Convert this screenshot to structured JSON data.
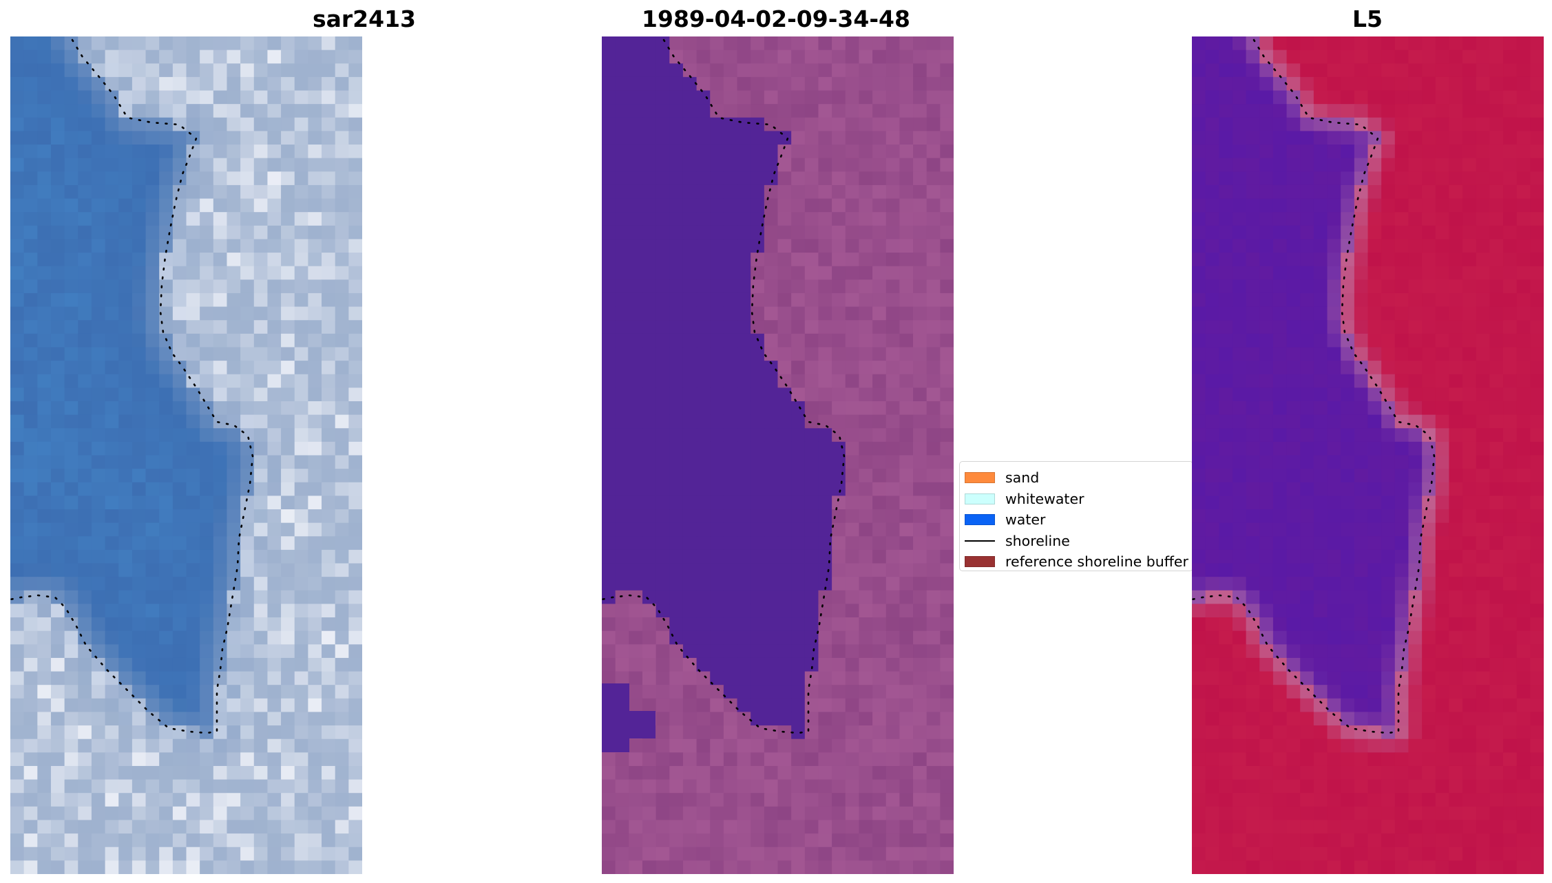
{
  "panels": [
    {
      "id": "rgb",
      "title": "sar2413"
    },
    {
      "id": "classified",
      "title": "1989-04-02-09-34-48"
    },
    {
      "id": "mndwi",
      "title": "L5"
    }
  ],
  "legend": {
    "items": [
      {
        "label": "sand",
        "color": "#fe8a3c",
        "kind": "patch"
      },
      {
        "label": "whitewater",
        "color": "#ccfffd",
        "kind": "patch"
      },
      {
        "label": "water",
        "color": "#0a63f5",
        "kind": "patch"
      },
      {
        "label": "shoreline",
        "color": "#000000",
        "kind": "line"
      },
      {
        "label": "reference shoreline buffer",
        "color": "#993232",
        "kind": "patch"
      }
    ]
  },
  "colors": {
    "rgb_water": "#3d6fb3",
    "rgb_land": "#9fb2cf",
    "rgb_bright": "#f2f4fa",
    "class_water": "#532497",
    "class_land": "#8e4585",
    "class_land_light": "#b4669f",
    "index_water": "#5a1aa6",
    "index_land": "#c0134a",
    "index_edge": "#c07aa8",
    "shoreline_dots": "#000000"
  }
}
